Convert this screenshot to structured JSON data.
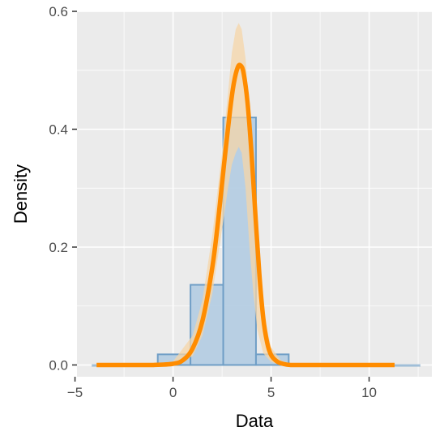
{
  "chart_data": {
    "type": "histogram",
    "title": "",
    "xlabel": "Data",
    "ylabel": "Density",
    "xlim": [
      -4.9,
      13.2
    ],
    "ylim": [
      -0.02,
      0.6
    ],
    "x_ticks": [
      -5,
      0,
      5,
      10
    ],
    "y_ticks": [
      0.0,
      0.2,
      0.4,
      0.6
    ],
    "x_tick_labels": [
      "−5",
      "0",
      "5",
      "10"
    ],
    "y_tick_labels": [
      "0.0",
      "0.2",
      "0.4",
      "0.6"
    ],
    "grid": true,
    "legend": "none",
    "histogram": {
      "bins": [
        {
          "x0": -4.11,
          "x1": -2.45,
          "density": 0.0
        },
        {
          "x0": -2.45,
          "x1": -0.78,
          "density": 0.0
        },
        {
          "x0": -0.78,
          "x1": 0.89,
          "density": 0.018
        },
        {
          "x0": 0.89,
          "x1": 2.56,
          "density": 0.136
        },
        {
          "x0": 2.56,
          "x1": 4.23,
          "density": 0.42
        },
        {
          "x0": 4.23,
          "x1": 5.9,
          "density": 0.018
        },
        {
          "x0": 5.9,
          "x1": 7.57,
          "density": 0.0
        },
        {
          "x0": 7.57,
          "x1": 9.24,
          "density": 0.0
        },
        {
          "x0": 9.24,
          "x1": 10.91,
          "density": 0.0
        },
        {
          "x0": 10.91,
          "x1": 12.58,
          "density": 0.0
        }
      ],
      "fill": "#b5cde3",
      "stroke": "#6f9ec6"
    },
    "density_curve": {
      "x": [
        -3.9,
        -2,
        -1,
        0,
        0.5,
        1,
        1.5,
        2,
        2.3,
        2.6,
        2.9,
        3.1,
        3.3,
        3.45,
        3.6,
        3.8,
        4.0,
        4.2,
        4.4,
        4.6,
        4.8,
        5.0,
        5.3,
        5.6,
        6,
        7,
        9,
        11.3
      ],
      "y": [
        0.0,
        0.0,
        0.0,
        0.002,
        0.008,
        0.028,
        0.075,
        0.165,
        0.245,
        0.34,
        0.43,
        0.478,
        0.505,
        0.508,
        0.495,
        0.445,
        0.36,
        0.255,
        0.155,
        0.08,
        0.038,
        0.017,
        0.006,
        0.002,
        0.0,
        0.0,
        0.0,
        0.0
      ],
      "color": "#ff8c00"
    },
    "confidence_band": {
      "x": [
        -3.9,
        -1,
        0,
        1,
        1.5,
        2,
        2.5,
        2.8,
        3.0,
        3.2,
        3.35,
        3.5,
        3.7,
        3.9,
        4.1,
        4.3,
        4.6,
        5.0,
        5.5,
        6,
        11.3
      ],
      "lower": [
        0.0,
        0.0,
        0.0,
        0.015,
        0.05,
        0.12,
        0.23,
        0.3,
        0.34,
        0.36,
        0.37,
        0.36,
        0.3,
        0.2,
        0.12,
        0.06,
        0.02,
        0.005,
        0.0,
        0.0,
        0.0
      ],
      "upper": [
        0.0,
        0.001,
        0.006,
        0.05,
        0.11,
        0.22,
        0.36,
        0.46,
        0.53,
        0.57,
        0.58,
        0.57,
        0.52,
        0.42,
        0.3,
        0.19,
        0.09,
        0.03,
        0.008,
        0.002,
        0.0
      ],
      "color": "#f5d6a8"
    },
    "colors": {
      "panel_background": "#ebebeb",
      "grid": "#ffffff"
    }
  }
}
